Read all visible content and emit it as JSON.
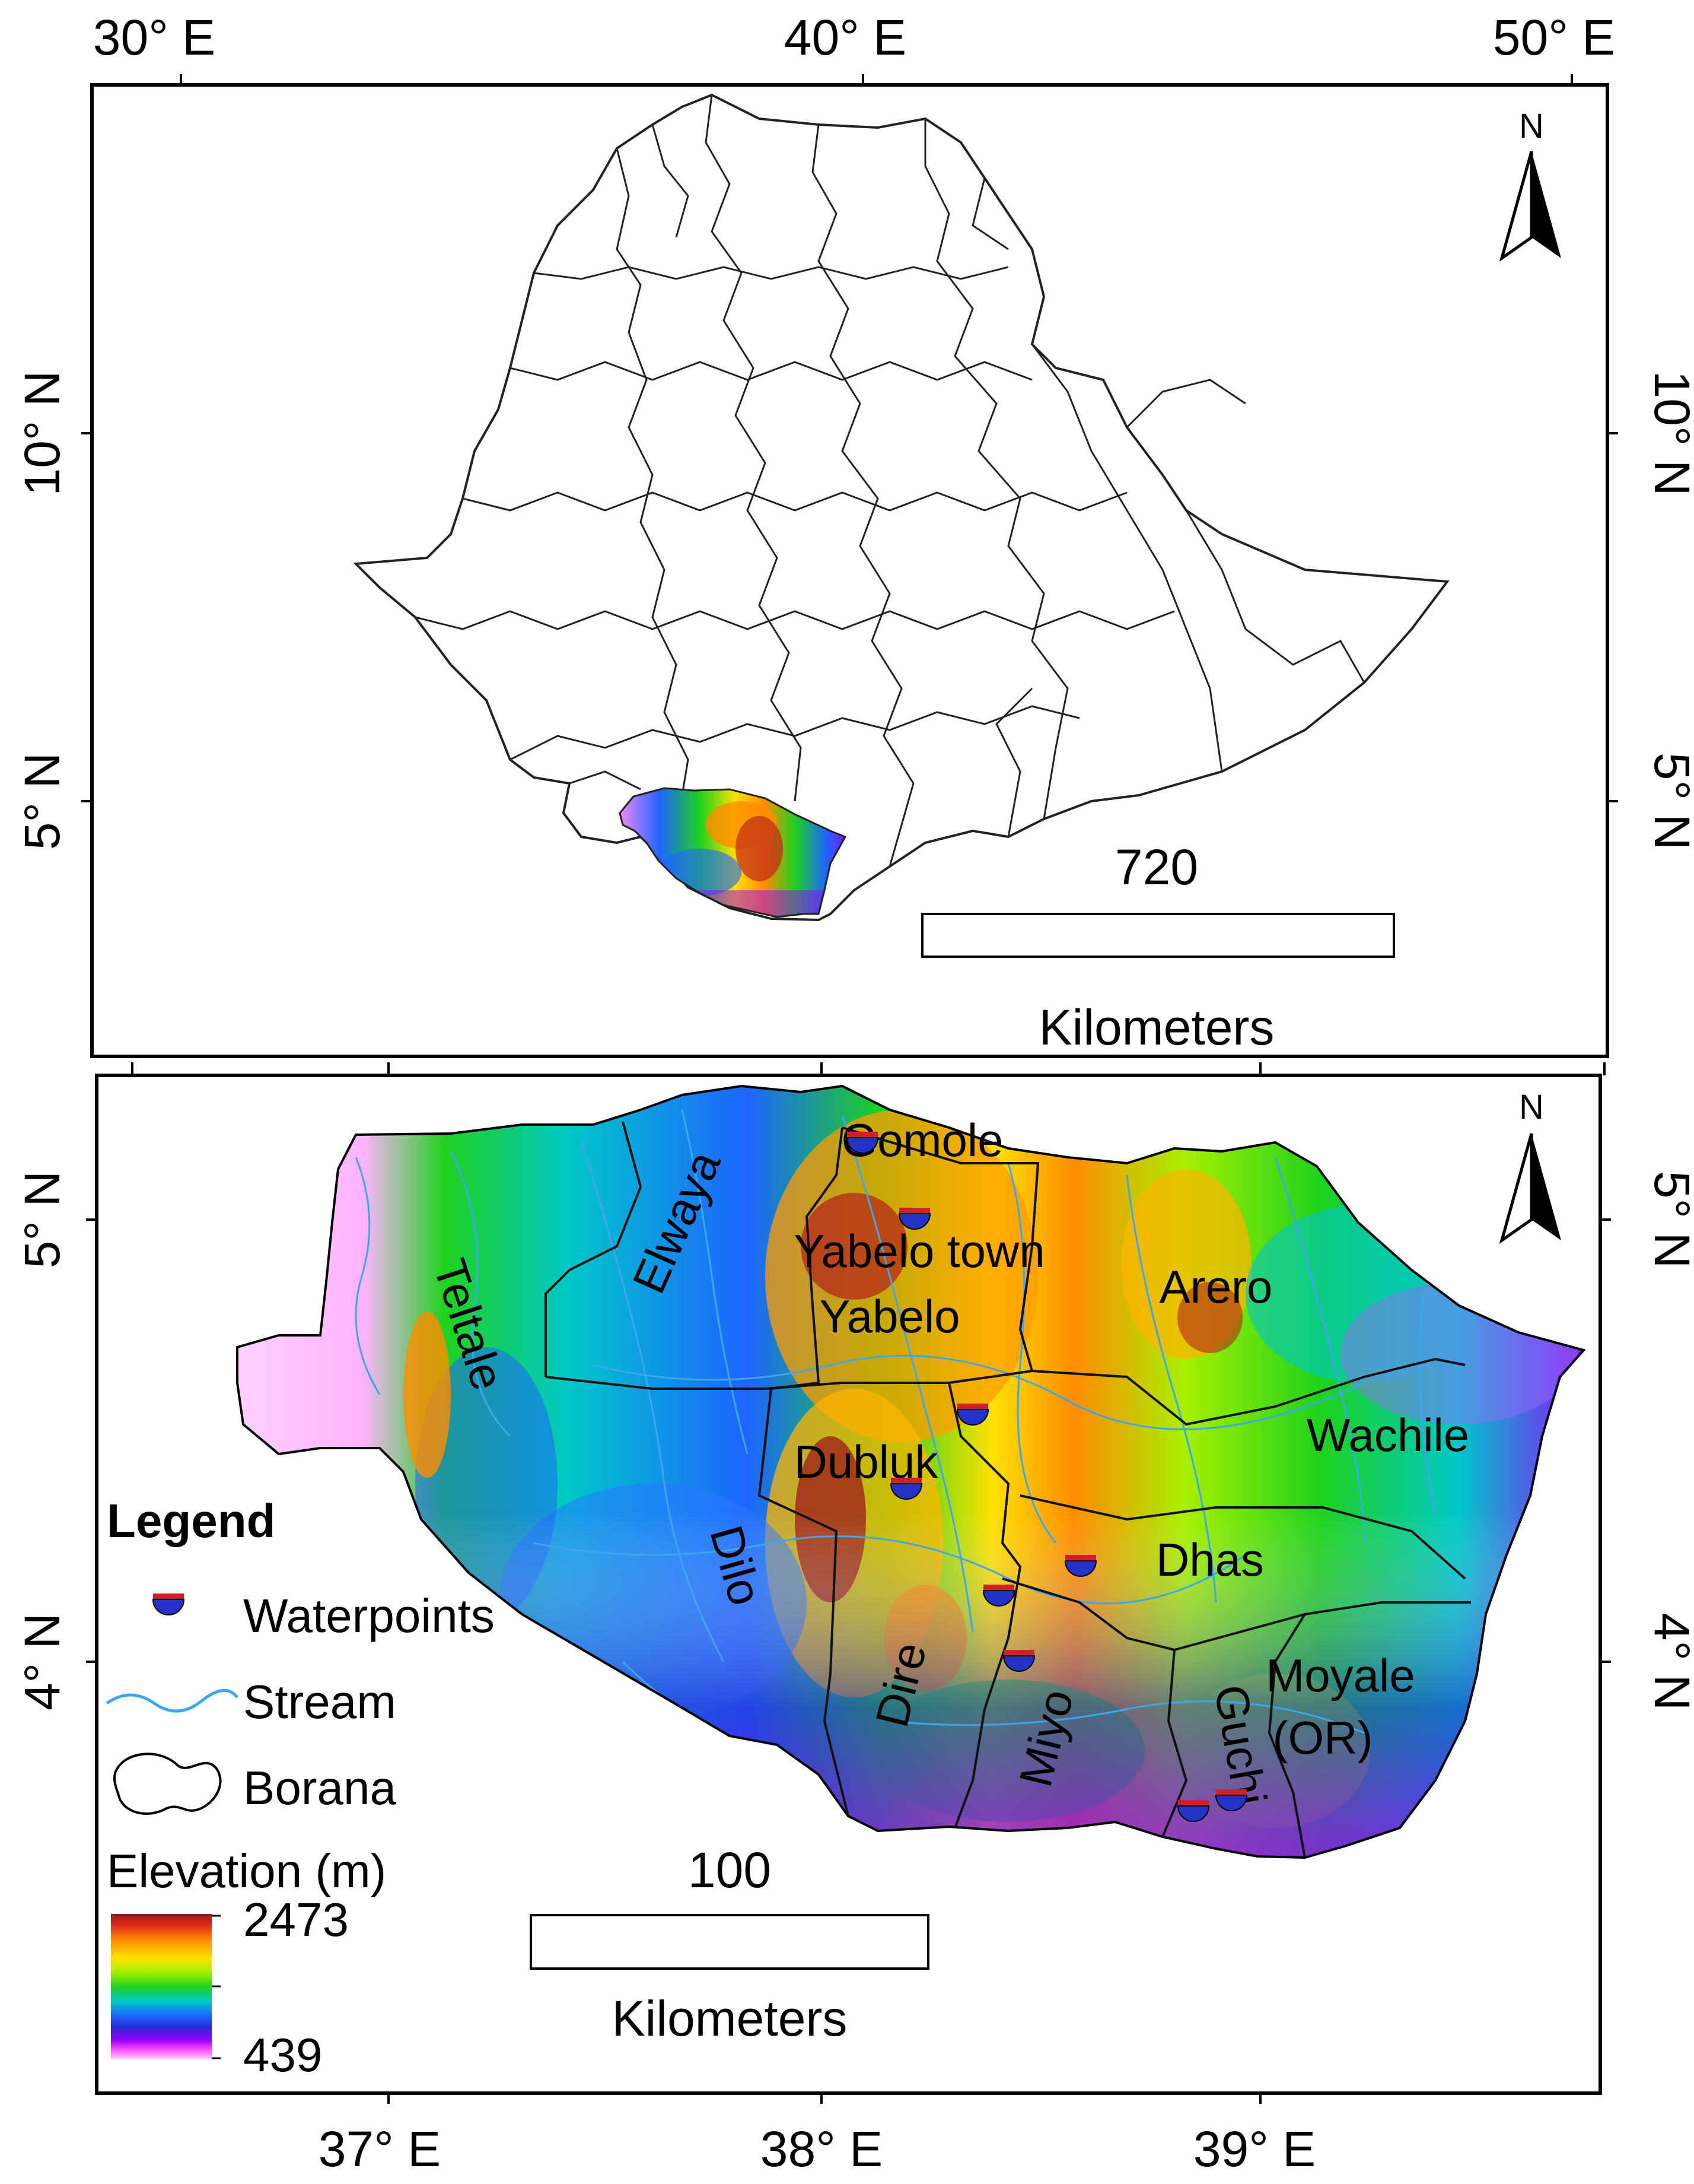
{
  "top_map": {
    "x_ticks": [
      "30° E",
      "40° E",
      "50° E"
    ],
    "y_ticks": [
      "10° N",
      "5° N"
    ],
    "north_label": "N",
    "scale_value": "720",
    "scale_unit": "Kilometers"
  },
  "bottom_map": {
    "x_ticks": [
      "37° E",
      "38° E",
      "39° E"
    ],
    "y_ticks": [
      "5° N",
      "4° N"
    ],
    "north_label": "N",
    "scale_value": "100",
    "scale_unit": "Kilometers",
    "regions": [
      "Gomole",
      "Yabelo town",
      "Yabelo",
      "Arero",
      "Teltale",
      "Elwaya",
      "Wachile",
      "Dubluk",
      "Dilo",
      "Dhas",
      "Dire",
      "Miyo",
      "Guchi",
      "Moyale",
      "(OR)"
    ]
  },
  "legend": {
    "title": "Legend",
    "items": [
      "Waterpoints",
      "Stream",
      "Borana"
    ],
    "elevation_title": "Elevation (m)",
    "elevation_max": "2473",
    "elevation_min": "439"
  },
  "colors": {
    "stream": "#3ea6ee",
    "waterpoint_top": "#d0202a",
    "waterpoint_body": "#2432c8",
    "elevation_ramp": [
      "#9b1a1a",
      "#e22a1c",
      "#ff8c00",
      "#ffe000",
      "#a6f000",
      "#1ed21e",
      "#00c8c8",
      "#1e64ff",
      "#2828d2",
      "#9b00ff",
      "#ff5aff",
      "#ffd2ff"
    ]
  }
}
